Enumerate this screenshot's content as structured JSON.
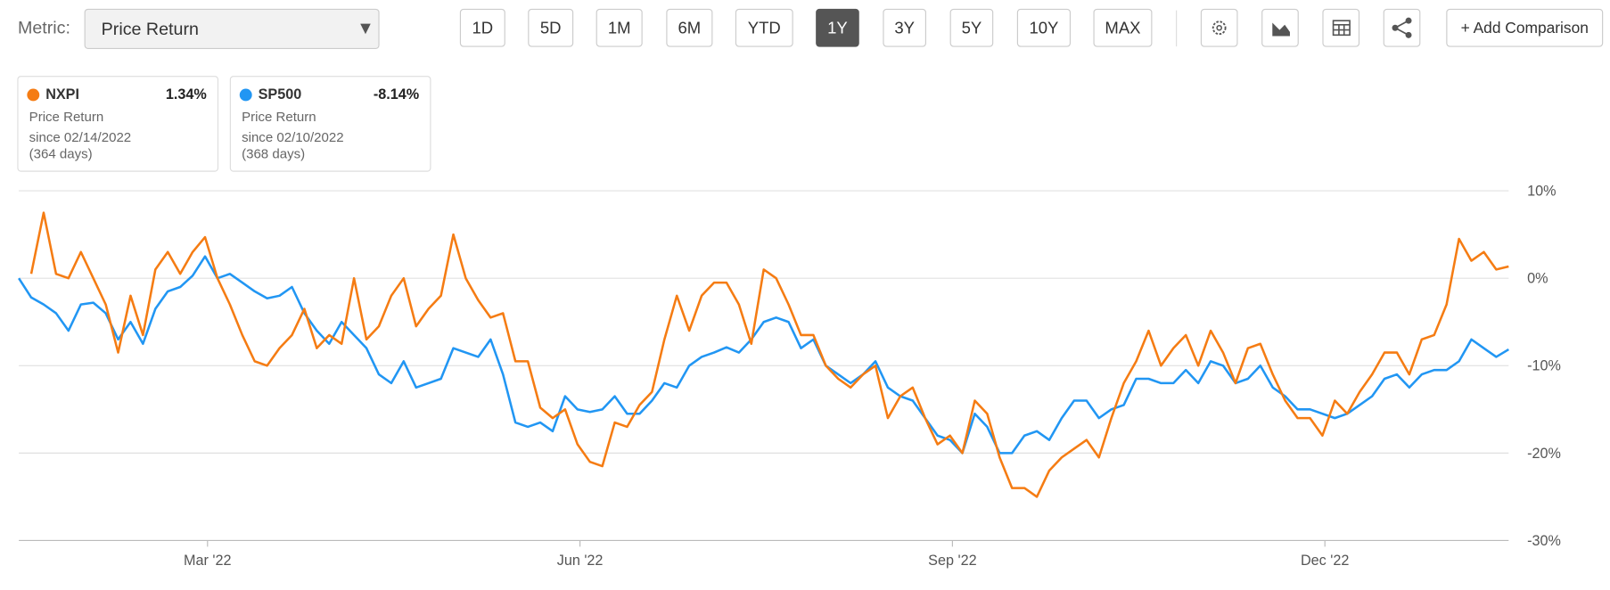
{
  "toolbar": {
    "metric_label": "Metric:",
    "metric_value": "Price Return",
    "ranges": [
      "1D",
      "5D",
      "1M",
      "6M",
      "YTD",
      "1Y",
      "3Y",
      "5Y",
      "10Y",
      "MAX"
    ],
    "active": "1Y",
    "add_comparison": "+ Add Comparison"
  },
  "cards": [
    {
      "value": "1.34%",
      "label": "Price Return",
      "since": "since 02/14/2022",
      "days": "(364 days)"
    },
    {
      "value": "-8.14%",
      "label": "Price Return",
      "since": "since 02/10/2022",
      "days": "(368 days)"
    }
  ],
  "chart_data": {
    "type": "line",
    "xlim": [
      0,
      120
    ],
    "xticks": [
      {
        "value": 15.2,
        "label": "Mar '22"
      },
      {
        "value": 45.2,
        "label": "Jun '22"
      },
      {
        "value": 75.2,
        "label": "Sep '22"
      },
      {
        "value": 105.2,
        "label": "Dec '22"
      }
    ],
    "ylim": [
      -30,
      10
    ],
    "yticks": [
      {
        "value": 10,
        "label": "10%"
      },
      {
        "value": 0,
        "label": "0%"
      },
      {
        "value": -10,
        "label": "-10%"
      },
      {
        "value": -20,
        "label": "-20%"
      },
      {
        "value": -30,
        "label": "-30%"
      }
    ],
    "grid": true,
    "series": [
      {
        "name": "NXPI",
        "color": "#f57c13",
        "values": [
          null,
          0.5,
          7.5,
          0.5,
          0,
          3,
          0,
          -3,
          -8.5,
          -2,
          -6.5,
          1,
          3,
          0.5,
          3,
          4.7,
          0,
          -3,
          -6.5,
          -9.5,
          -10,
          -8,
          -6.5,
          -3.5,
          -8,
          -6.5,
          -7.5,
          0,
          -7,
          -5.5,
          -2,
          0,
          -5.5,
          -3.5,
          -2,
          5,
          0,
          -2.5,
          -4.5,
          -4,
          -9.5,
          -9.5,
          -14.8,
          -16,
          -15,
          -19,
          -21,
          -21.5,
          -16.5,
          -17,
          -14.5,
          -13,
          -7,
          -2,
          -6,
          -2,
          -0.5,
          -0.5,
          -3,
          -7.5,
          1,
          0,
          -3,
          -6.5,
          -6.5,
          -10,
          -11.5,
          -12.5,
          -11,
          -10,
          -16,
          -13.5,
          -12.5,
          -16,
          -19,
          -18,
          -20,
          -14,
          -15.5,
          -20.5,
          -24,
          -24,
          -25,
          -22,
          -20.5,
          -19.5,
          -18.5,
          -20.5,
          -16,
          -12,
          -9.5,
          -6,
          -10,
          -8,
          -6.5,
          -10,
          -6,
          -8.5,
          -12,
          -8,
          -7.5,
          -11,
          -14,
          -16,
          -16,
          -18,
          -14,
          -15.5,
          -13,
          -11,
          -8.5,
          -8.5,
          -11,
          -7,
          -6.5,
          -3,
          4.5,
          2,
          3,
          1,
          1.34
        ]
      },
      {
        "name": "SP500",
        "color": "#2196f3",
        "values": [
          0,
          -2.2,
          -3,
          -4,
          -6,
          -3,
          -2.8,
          -4,
          -7,
          -5,
          -7.5,
          -3.5,
          -1.5,
          -1,
          0.3,
          2.5,
          0,
          0.5,
          -0.5,
          -1.5,
          -2.3,
          -2,
          -1,
          -4,
          -6,
          -7.5,
          -5,
          -6.5,
          -8,
          -11,
          -12,
          -9.5,
          -12.5,
          -12,
          -11.5,
          -8,
          -8.5,
          -9,
          -7,
          -11,
          -16.5,
          -17,
          -16.5,
          -17.5,
          -13.5,
          -15,
          -15.3,
          -15,
          -13.5,
          -15.5,
          -15.5,
          -14,
          -12,
          -12.5,
          -10,
          -9,
          -8.5,
          -7.9,
          -8.5,
          -7,
          -5,
          -4.5,
          -5,
          -8,
          -7,
          -10,
          -11,
          -12,
          -11,
          -9.5,
          -12.5,
          -13.5,
          -14,
          -16,
          -18,
          -18.5,
          -20,
          -15.5,
          -17,
          -20,
          -20,
          -18,
          -17.5,
          -18.5,
          -16,
          -14,
          -14,
          -16,
          -15,
          -14.5,
          -11.5,
          -11.5,
          -12,
          -12,
          -10.5,
          -12,
          -9.5,
          -10,
          -12,
          -11.5,
          -10,
          -12.5,
          -13.5,
          -15,
          -15,
          -15.5,
          -16,
          -15.5,
          -14.5,
          -13.5,
          -11.5,
          -11,
          -12.5,
          -11,
          -10.5,
          -10.5,
          -9.5,
          -7,
          -8,
          -9,
          -8.14
        ]
      }
    ]
  }
}
